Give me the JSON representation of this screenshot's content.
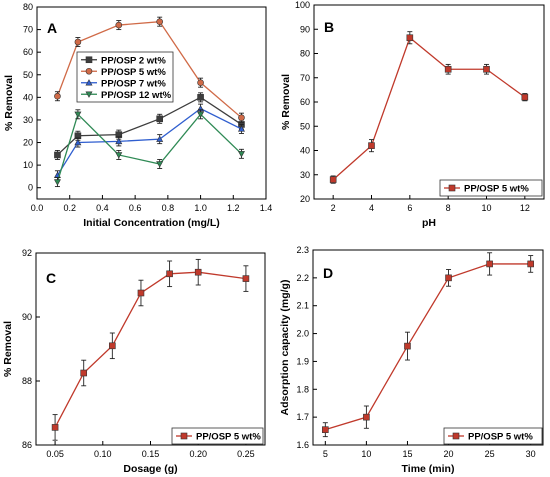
{
  "chart_data": [
    {
      "type": "line",
      "panel_label": "A",
      "xlabel": "Initial Concentration (mg/L)",
      "ylabel": "% Removal",
      "xlim": [
        0.0,
        1.4
      ],
      "ylim": [
        -5,
        80
      ],
      "xticks": [
        "0.0",
        "0.2",
        "0.4",
        "0.6",
        "0.8",
        "1.0",
        "1.2",
        "1.4"
      ],
      "yticks": [
        "0",
        "10",
        "20",
        "30",
        "40",
        "50",
        "60",
        "70",
        "80"
      ],
      "legend_position": "center-left",
      "x": [
        0.125,
        0.25,
        0.5,
        0.75,
        1.0,
        1.25
      ],
      "series": [
        {
          "name": "PP/OSP 2 wt%",
          "color": "#3d3d3d",
          "marker": "square",
          "values": [
            14.5,
            23,
            23.5,
            30.5,
            40,
            28
          ],
          "errors": [
            2,
            2,
            2,
            2,
            2,
            2
          ]
        },
        {
          "name": "PP/OSP 5 wt%",
          "color": "#d06a47",
          "marker": "circle",
          "values": [
            40.5,
            64.5,
            72,
            73.5,
            46.5,
            31
          ],
          "errors": [
            2,
            2,
            2,
            2,
            2,
            2
          ]
        },
        {
          "name": "PP/OSP 7 wt%",
          "color": "#2f5ecf",
          "marker": "triangle-up",
          "values": [
            5.5,
            20,
            20.5,
            21.5,
            35,
            26
          ],
          "errors": [
            2,
            2,
            2,
            2,
            2,
            2
          ]
        },
        {
          "name": "PP/OSP 12 wt%",
          "color": "#2f8a55",
          "marker": "triangle-down",
          "values": [
            2.5,
            32.5,
            14.5,
            10.5,
            32.5,
            15
          ],
          "errors": [
            2,
            2,
            2,
            2,
            2,
            2
          ]
        }
      ]
    },
    {
      "type": "line",
      "panel_label": "B",
      "xlabel": "pH",
      "ylabel": "% Removal",
      "xlim": [
        1,
        13
      ],
      "ylim": [
        20,
        100
      ],
      "xticks": [
        "2",
        "4",
        "6",
        "8",
        "10",
        "12"
      ],
      "yticks": [
        "20",
        "30",
        "40",
        "50",
        "60",
        "70",
        "80",
        "90",
        "100"
      ],
      "legend_position": "bottom-right",
      "x": [
        2,
        4,
        6,
        8,
        10,
        12
      ],
      "series": [
        {
          "name": "PP/OSP 5 wt%",
          "color": "#c0392b",
          "marker": "square",
          "values": [
            28,
            42,
            86.5,
            73.5,
            73.5,
            62
          ],
          "errors": [
            1.5,
            2.5,
            2.5,
            2,
            2,
            1.5
          ]
        }
      ]
    },
    {
      "type": "line",
      "panel_label": "C",
      "xlabel": "Dosage (g)",
      "ylabel": "% Removal",
      "xlim": [
        0.03,
        0.27
      ],
      "ylim": [
        86,
        92
      ],
      "xticks": [
        "0.05",
        "0.10",
        "0.15",
        "0.20",
        "0.25"
      ],
      "yticks": [
        "86",
        "88",
        "90",
        "92"
      ],
      "legend_position": "bottom-right",
      "x": [
        0.05,
        0.08,
        0.11,
        0.14,
        0.17,
        0.2,
        0.25
      ],
      "series": [
        {
          "name": "PP/OSP 5 wt%",
          "color": "#c0392b",
          "marker": "square",
          "values": [
            86.55,
            88.25,
            89.1,
            90.75,
            91.35,
            91.4,
            91.2
          ],
          "errors": [
            0.4,
            0.4,
            0.4,
            0.4,
            0.4,
            0.4,
            0.4
          ]
        }
      ]
    },
    {
      "type": "line",
      "panel_label": "D",
      "xlabel": "Time (min)",
      "ylabel": "Adsorption capacity (mg/g)",
      "xlim": [
        3.5,
        31.5
      ],
      "ylim": [
        1.6,
        2.3
      ],
      "xticks": [
        "5",
        "10",
        "15",
        "20",
        "25",
        "30"
      ],
      "yticks": [
        "1.6",
        "1.7",
        "1.8",
        "1.9",
        "2.0",
        "2.1",
        "2.2",
        "2.3"
      ],
      "legend_position": "bottom-right",
      "x": [
        5,
        10,
        15,
        20,
        25,
        30
      ],
      "series": [
        {
          "name": "PP/OSP 5 wt%",
          "color": "#c0392b",
          "marker": "square",
          "values": [
            1.655,
            1.7,
            1.955,
            2.2,
            2.25,
            2.25
          ],
          "errors": [
            0.025,
            0.04,
            0.05,
            0.03,
            0.04,
            0.03
          ]
        }
      ]
    }
  ]
}
